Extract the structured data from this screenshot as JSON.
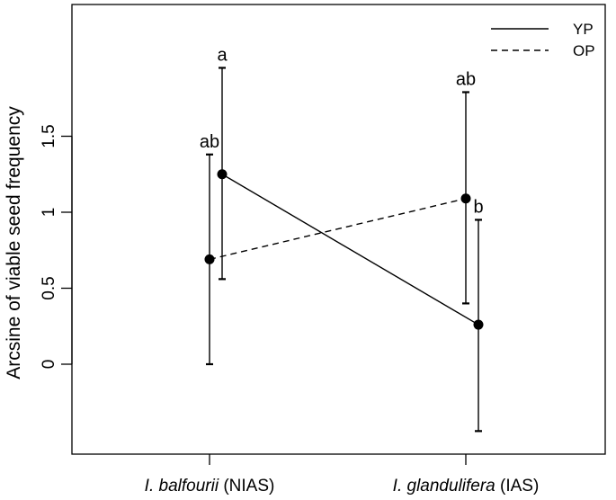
{
  "chart_data": {
    "type": "line",
    "ylabel": "Arcsine of viable seed frequency",
    "xlabel": "",
    "ylim": [
      -0.6,
      2.3
    ],
    "yticks": [
      {
        "value": 0,
        "label": "0"
      },
      {
        "value": 0.5,
        "label": "0.5"
      },
      {
        "value": 1,
        "label": "1"
      },
      {
        "value": 1.5,
        "label": "1.5"
      }
    ],
    "categories": [
      {
        "italic": "I. balfourii",
        "rest": " (NIAS)"
      },
      {
        "italic": "I. glandulifera",
        "rest": " (IAS)"
      }
    ],
    "series": [
      {
        "name": "YP",
        "dash": "solid",
        "values": [
          1.25,
          0.26
        ],
        "lower": [
          0.56,
          -0.44
        ],
        "upper": [
          1.95,
          0.95
        ],
        "letters": [
          "a",
          "b"
        ]
      },
      {
        "name": "OP",
        "dash": "dashed",
        "values": [
          0.69,
          1.09
        ],
        "lower": [
          0.0,
          0.4
        ],
        "upper": [
          1.38,
          1.79
        ],
        "letters": [
          "ab",
          "ab"
        ]
      }
    ],
    "legend_position": "top-right",
    "grid": false
  }
}
